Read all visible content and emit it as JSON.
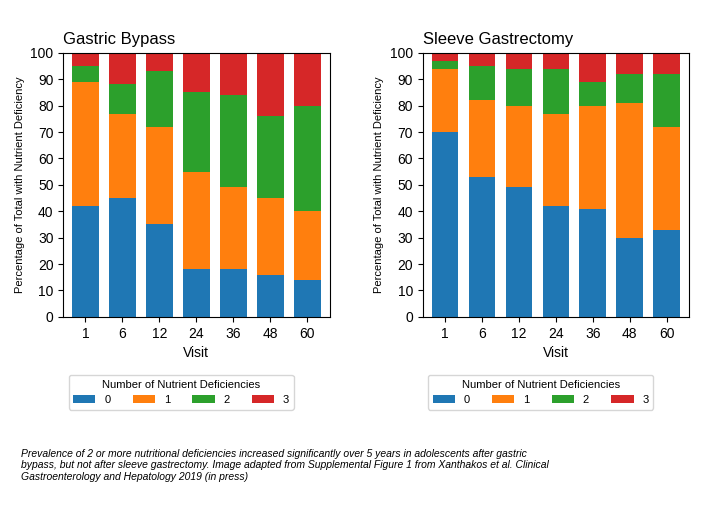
{
  "chart_data": [
    {
      "type": "bar",
      "title": "Gastric Bypass",
      "stacked": true,
      "grid": false,
      "x_label": "Visit",
      "y_label": "Percentage of Total with Nutrient Deficiency",
      "categories": [
        "1",
        "6",
        "12",
        "24",
        "36",
        "48",
        "60"
      ],
      "series": [
        {
          "name": "0",
          "values": [
            42,
            45,
            35,
            18,
            18,
            16,
            14
          ]
        },
        {
          "name": "1",
          "values": [
            47,
            32,
            37,
            37,
            31,
            29,
            26
          ]
        },
        {
          "name": "2",
          "values": [
            6,
            11,
            21,
            30,
            35,
            31,
            40
          ]
        },
        {
          "name": "3",
          "values": [
            5,
            12,
            7,
            15,
            16,
            24,
            20
          ]
        }
      ],
      "ylim": [
        0,
        100
      ],
      "yticks": [
        0,
        10,
        20,
        30,
        40,
        50,
        60,
        70,
        80,
        90,
        100
      ],
      "legend": "upper left",
      "legend_title": "Number of Nutrient Deficiencies"
    },
    {
      "type": "bar",
      "title": "Sleeve Gastrectomy",
      "stacked": true,
      "grid": false,
      "x_label": "Visit",
      "y_label": "Percentage of Total with Nutrient Deficiency",
      "categories": [
        "1",
        "6",
        "12",
        "24",
        "36",
        "48",
        "60"
      ],
      "series": [
        {
          "name": "0",
          "values": [
            70,
            53,
            49,
            42,
            41,
            30,
            33
          ]
        },
        {
          "name": "1",
          "values": [
            24,
            29,
            31,
            35,
            39,
            51,
            39
          ]
        },
        {
          "name": "2",
          "values": [
            3,
            13,
            14,
            17,
            9,
            11,
            20
          ]
        },
        {
          "name": "3",
          "values": [
            3,
            5,
            6,
            6,
            11,
            8,
            8
          ]
        }
      ],
      "ylim": [
        0,
        100
      ],
      "yticks": [
        0,
        10,
        20,
        30,
        40,
        50,
        60,
        70,
        80,
        90,
        100
      ],
      "legend": "upper left",
      "legend_title": "Number of Nutrient Deficiencies"
    }
  ],
  "caption": "Prevalence of 2 or more nutritional deficiencies increased significantly over 5 years in adolescents after gastric\nbypass, but not after sleeve gastrectomy. Image adapted from Supplemental Figure 1 from Xanthakos et al. Clinical\nGastroenterology and Hepatology 2019 (in press)"
}
